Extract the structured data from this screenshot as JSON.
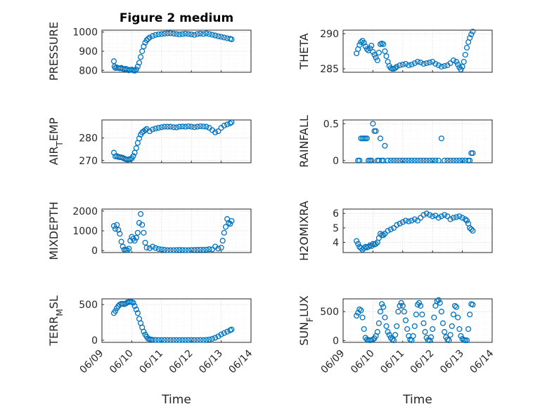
{
  "figure_title": "Figure 2 medium",
  "x_axis_label": "Time",
  "x_tick_labels": [
    "06/09",
    "06/10",
    "06/11",
    "06/12",
    "06/13",
    "06/14"
  ],
  "marker_color": "#0072BD",
  "chart_data": [
    {
      "type": "scatter",
      "title": "Figure 2 medium",
      "ylabel": "PRESSURE",
      "ylabel_sub": "",
      "ylim": [
        790,
        1010
      ],
      "yticks": [
        800,
        900,
        1000
      ],
      "xlim": [
        "06/09",
        "06/14"
      ],
      "xlabel": "",
      "grid": "on",
      "x": [
        9.4,
        9.42,
        9.45,
        9.5,
        9.55,
        9.6,
        9.65,
        9.7,
        9.75,
        9.8,
        9.85,
        9.9,
        9.95,
        10.0,
        10.05,
        10.1,
        10.15,
        10.2,
        10.25,
        10.3,
        10.35,
        10.4,
        10.45,
        10.5,
        10.55,
        10.6,
        10.7,
        10.8,
        10.9,
        11.0,
        11.1,
        11.2,
        11.3,
        11.4,
        11.5,
        11.6,
        11.7,
        11.8,
        11.9,
        12.0,
        12.1,
        12.2,
        12.3,
        12.4,
        12.5,
        12.6,
        12.7,
        12.8,
        12.9,
        13.0,
        13.1,
        13.2,
        13.3,
        13.35
      ],
      "y": [
        848,
        820,
        812,
        815,
        812,
        810,
        813,
        808,
        806,
        808,
        805,
        800,
        802,
        804,
        800,
        798,
        805,
        820,
        840,
        870,
        900,
        925,
        945,
        958,
        965,
        972,
        980,
        985,
        988,
        990,
        992,
        993,
        994,
        992,
        990,
        988,
        990,
        992,
        990,
        988,
        985,
        990,
        992,
        990,
        993,
        990,
        986,
        982,
        978,
        975,
        972,
        968,
        965,
        962
      ]
    },
    {
      "type": "scatter",
      "ylabel": "THETA",
      "ylabel_sub": "",
      "ylim": [
        284.5,
        290.5
      ],
      "yticks": [
        285,
        290
      ],
      "xlim": [
        "06/09",
        "06/14"
      ],
      "xlabel": "",
      "grid": "on",
      "x": [
        9.45,
        9.5,
        9.55,
        9.6,
        9.65,
        9.7,
        9.75,
        9.8,
        9.85,
        9.9,
        9.95,
        10.0,
        10.05,
        10.1,
        10.15,
        10.2,
        10.25,
        10.3,
        10.35,
        10.4,
        10.45,
        10.5,
        10.55,
        10.6,
        10.65,
        10.7,
        10.75,
        10.8,
        10.9,
        11.0,
        11.1,
        11.2,
        11.3,
        11.4,
        11.5,
        11.6,
        11.7,
        11.8,
        11.9,
        12.0,
        12.1,
        12.2,
        12.3,
        12.4,
        12.5,
        12.6,
        12.7,
        12.8,
        12.85,
        12.9,
        12.95,
        13.0,
        13.05,
        13.1,
        13.15,
        13.2,
        13.25,
        13.3,
        13.35
      ],
      "y": [
        287.2,
        287.8,
        288.4,
        288.8,
        289.0,
        288.7,
        288.2,
        287.8,
        287.6,
        287.9,
        288.3,
        287.4,
        287.0,
        286.6,
        286.2,
        287.3,
        288.5,
        288.6,
        288.5,
        287.5,
        286.8,
        286.0,
        285.4,
        285.1,
        285.0,
        285.0,
        285.1,
        285.3,
        285.5,
        285.6,
        285.7,
        285.5,
        285.6,
        285.8,
        286.0,
        285.9,
        285.7,
        285.8,
        285.9,
        286.0,
        285.7,
        285.5,
        285.3,
        285.4,
        285.5,
        285.8,
        286.2,
        286.0,
        285.6,
        285.2,
        284.9,
        285.3,
        286.0,
        287.0,
        288.0,
        288.8,
        289.4,
        289.9,
        290.3
      ]
    },
    {
      "type": "scatter",
      "ylabel": "AIR",
      "ylabel_sub": "T",
      "ylabel_end": "EMP",
      "ylim": [
        269,
        288
      ],
      "yticks": [
        270,
        280
      ],
      "xlim": [
        "06/09",
        "06/14"
      ],
      "xlabel": "",
      "grid": "on",
      "x": [
        9.4,
        9.45,
        9.5,
        9.55,
        9.6,
        9.65,
        9.7,
        9.75,
        9.8,
        9.85,
        9.9,
        9.95,
        10.0,
        10.05,
        10.1,
        10.15,
        10.2,
        10.25,
        10.3,
        10.35,
        10.4,
        10.45,
        10.5,
        10.6,
        10.7,
        10.8,
        10.9,
        11.0,
        11.1,
        11.2,
        11.3,
        11.4,
        11.5,
        11.6,
        11.7,
        11.8,
        11.9,
        12.0,
        12.1,
        12.2,
        12.3,
        12.4,
        12.5,
        12.6,
        12.7,
        12.8,
        12.9,
        13.0,
        13.1,
        13.2,
        13.3,
        13.35
      ],
      "y": [
        273.5,
        271.8,
        272.0,
        271.6,
        271.5,
        271.4,
        271.2,
        270.8,
        270.6,
        270.4,
        270.5,
        270.6,
        271.0,
        272.0,
        273.5,
        275.5,
        277.8,
        279.8,
        281.5,
        282.5,
        283.0,
        283.5,
        284.0,
        283.0,
        283.8,
        284.2,
        284.5,
        284.8,
        285.0,
        285.0,
        285.0,
        284.8,
        284.7,
        285.0,
        285.1,
        285.0,
        285.2,
        285.0,
        284.8,
        285.0,
        285.2,
        285.1,
        285.0,
        284.5,
        283.5,
        282.5,
        283.0,
        284.5,
        285.5,
        286.0,
        286.5,
        287.0
      ]
    },
    {
      "type": "scatter",
      "ylabel": "RAINFALL",
      "ylabel_sub": "",
      "ylim": [
        -0.03,
        0.55
      ],
      "yticks": [
        0,
        0.5
      ],
      "xlim": [
        "06/09",
        "06/14"
      ],
      "xlabel": "",
      "grid": "on",
      "x": [
        9.5,
        9.55,
        9.6,
        9.65,
        9.7,
        9.75,
        9.8,
        9.85,
        9.9,
        9.95,
        10.0,
        10.05,
        10.1,
        10.15,
        10.2,
        10.25,
        10.3,
        10.35,
        10.4,
        10.5,
        10.6,
        10.7,
        10.8,
        10.9,
        11.0,
        11.1,
        11.2,
        11.3,
        11.4,
        11.5,
        11.6,
        11.7,
        11.8,
        11.9,
        12.0,
        12.1,
        12.2,
        12.3,
        12.4,
        12.5,
        12.6,
        12.7,
        12.8,
        12.9,
        13.0,
        13.1,
        13.2,
        13.25,
        13.3,
        13.35
      ],
      "y": [
        0,
        0,
        0.3,
        0.3,
        0.3,
        0.3,
        0.3,
        0,
        0,
        0,
        0.5,
        0.4,
        0.4,
        0,
        0,
        0.3,
        0,
        0,
        0.2,
        0,
        0,
        0,
        0,
        0,
        0,
        0,
        0,
        0,
        0,
        0,
        0,
        0,
        0,
        0,
        0,
        0,
        0,
        0.3,
        0,
        0,
        0,
        0,
        0,
        0,
        0,
        0,
        0,
        0,
        0.1,
        0.1
      ]
    },
    {
      "type": "scatter",
      "ylabel": "MIXDEPTH",
      "ylabel_sub": "",
      "ylim": [
        -100,
        2100
      ],
      "yticks": [
        0,
        1000,
        2000
      ],
      "xlim": [
        "06/09",
        "06/14"
      ],
      "xlabel": "",
      "grid": "on",
      "x": [
        9.4,
        9.45,
        9.5,
        9.55,
        9.6,
        9.65,
        9.7,
        9.75,
        9.8,
        9.85,
        9.9,
        9.95,
        10.0,
        10.05,
        10.1,
        10.15,
        10.2,
        10.25,
        10.3,
        10.35,
        10.4,
        10.45,
        10.5,
        10.6,
        10.7,
        10.8,
        10.9,
        11.0,
        11.1,
        11.2,
        11.3,
        11.4,
        11.5,
        11.6,
        11.7,
        11.8,
        11.9,
        12.0,
        12.1,
        12.2,
        12.3,
        12.4,
        12.5,
        12.6,
        12.7,
        12.8,
        12.9,
        13.0,
        13.05,
        13.1,
        13.15,
        13.2,
        13.25,
        13.3,
        13.35
      ],
      "y": [
        1250,
        1100,
        1300,
        1050,
        850,
        450,
        200,
        50,
        30,
        20,
        100,
        500,
        700,
        600,
        500,
        650,
        900,
        1400,
        1850,
        1300,
        900,
        400,
        150,
        120,
        200,
        130,
        80,
        60,
        40,
        20,
        20,
        25,
        30,
        35,
        30,
        25,
        20,
        30,
        35,
        40,
        45,
        40,
        50,
        70,
        60,
        200,
        100,
        150,
        500,
        900,
        1200,
        1600,
        1400,
        1350,
        1500
      ]
    },
    {
      "type": "scatter",
      "ylabel": "H2OMIXRA",
      "ylabel_sub": "",
      "ylim": [
        3.3,
        6.3
      ],
      "yticks": [
        4,
        5,
        6
      ],
      "xlim": [
        "06/09",
        "06/14"
      ],
      "xlabel": "",
      "grid": "on",
      "x": [
        9.45,
        9.5,
        9.55,
        9.6,
        9.65,
        9.7,
        9.75,
        9.8,
        9.85,
        9.9,
        9.95,
        10.0,
        10.05,
        10.1,
        10.15,
        10.2,
        10.25,
        10.3,
        10.35,
        10.4,
        10.5,
        10.6,
        10.7,
        10.8,
        10.9,
        11.0,
        11.1,
        11.2,
        11.3,
        11.4,
        11.5,
        11.6,
        11.7,
        11.8,
        11.9,
        12.0,
        12.1,
        12.2,
        12.3,
        12.4,
        12.5,
        12.6,
        12.7,
        12.8,
        12.9,
        13.0,
        13.1,
        13.15,
        13.2,
        13.25,
        13.3,
        13.35
      ],
      "y": [
        4.1,
        3.9,
        3.7,
        3.6,
        3.5,
        3.6,
        3.7,
        3.65,
        3.7,
        3.8,
        3.75,
        3.9,
        3.85,
        3.9,
        4.0,
        4.3,
        4.6,
        4.5,
        4.5,
        4.6,
        4.8,
        4.9,
        5.0,
        5.2,
        5.3,
        5.4,
        5.5,
        5.45,
        5.5,
        5.6,
        5.5,
        5.7,
        5.9,
        6.0,
        5.9,
        5.8,
        5.85,
        5.7,
        5.8,
        5.9,
        5.8,
        5.6,
        5.7,
        5.75,
        5.8,
        5.7,
        5.6,
        5.5,
        5.3,
        5.0,
        4.9,
        4.8
      ]
    },
    {
      "type": "scatter",
      "ylabel": "TERR",
      "ylabel_sub": "M",
      "ylabel_end": "SL",
      "ylim": [
        -30,
        580
      ],
      "yticks": [
        0,
        500
      ],
      "xlim": [
        "06/09",
        "06/14"
      ],
      "xlabel": "Time",
      "grid": "on",
      "x": [
        9.4,
        9.45,
        9.5,
        9.55,
        9.6,
        9.65,
        9.7,
        9.75,
        9.8,
        9.85,
        9.9,
        9.95,
        10.0,
        10.05,
        10.1,
        10.15,
        10.2,
        10.25,
        10.3,
        10.35,
        10.4,
        10.45,
        10.5,
        10.55,
        10.6,
        10.65,
        10.7,
        10.8,
        10.9,
        11.0,
        11.1,
        11.2,
        11.3,
        11.4,
        11.5,
        11.6,
        11.7,
        11.8,
        11.9,
        12.0,
        12.1,
        12.2,
        12.3,
        12.4,
        12.5,
        12.6,
        12.7,
        12.8,
        12.9,
        13.0,
        13.1,
        13.2,
        13.3,
        13.35
      ],
      "y": [
        380,
        410,
        450,
        480,
        500,
        510,
        510,
        505,
        515,
        530,
        535,
        540,
        535,
        525,
        480,
        430,
        380,
        300,
        240,
        180,
        120,
        80,
        50,
        20,
        15,
        10,
        5,
        3,
        2,
        2,
        2,
        2,
        2,
        2,
        2,
        2,
        2,
        2,
        2,
        2,
        2,
        2,
        2,
        2,
        5,
        10,
        20,
        35,
        55,
        80,
        100,
        120,
        140,
        150
      ]
    },
    {
      "type": "scatter",
      "ylabel": "SUN",
      "ylabel_sub": "F",
      "ylabel_end": "LUX",
      "ylim": [
        -30,
        720
      ],
      "yticks": [
        0,
        500
      ],
      "xlim": [
        "06/09",
        "06/14"
      ],
      "xlabel": "Time",
      "grid": "on",
      "x": [
        9.45,
        9.5,
        9.55,
        9.6,
        9.65,
        9.7,
        9.75,
        9.8,
        9.85,
        9.9,
        9.95,
        10.0,
        10.05,
        10.1,
        10.15,
        10.2,
        10.25,
        10.3,
        10.35,
        10.4,
        10.45,
        10.5,
        10.55,
        10.6,
        10.65,
        10.7,
        10.75,
        10.8,
        10.85,
        10.9,
        10.95,
        11.0,
        11.05,
        11.1,
        11.15,
        11.2,
        11.25,
        11.3,
        11.35,
        11.4,
        11.45,
        11.5,
        11.55,
        11.6,
        11.65,
        11.7,
        11.75,
        11.8,
        11.85,
        11.9,
        11.95,
        12.0,
        12.05,
        12.1,
        12.15,
        12.2,
        12.25,
        12.3,
        12.35,
        12.4,
        12.45,
        12.5,
        12.55,
        12.6,
        12.65,
        12.7,
        12.75,
        12.8,
        12.85,
        12.9,
        12.95,
        13.0,
        13.05,
        13.1,
        13.15,
        13.2,
        13.25,
        13.3,
        13.35
      ],
      "y": [
        430,
        480,
        540,
        520,
        400,
        200,
        50,
        20,
        10,
        5,
        10,
        20,
        40,
        80,
        150,
        300,
        500,
        630,
        580,
        400,
        250,
        150,
        100,
        50,
        20,
        5,
        100,
        250,
        500,
        600,
        650,
        600,
        500,
        350,
        200,
        80,
        20,
        5,
        80,
        250,
        450,
        620,
        650,
        600,
        450,
        300,
        150,
        50,
        10,
        5,
        60,
        200,
        400,
        600,
        680,
        700,
        650,
        500,
        300,
        150,
        60,
        20,
        5,
        100,
        250,
        450,
        600,
        580,
        400,
        200,
        80,
        30,
        10,
        5,
        5,
        200,
        450,
        630,
        620
      ]
    }
  ]
}
